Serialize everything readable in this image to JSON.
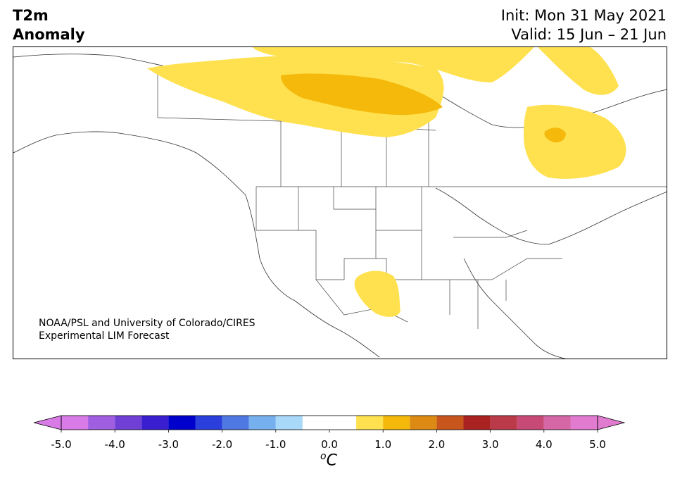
{
  "header": {
    "title_line1": "T2m",
    "title_line2": "Anomaly",
    "init": "Init: Mon 31 May 2021",
    "valid": "Valid: 15 Jun – 21 Jun"
  },
  "credit": {
    "line1": "NOAA/PSL and University of Colorado/CIRES",
    "line2": "Experimental LIM Forecast"
  },
  "colorbar": {
    "unit_base": "C",
    "unit_sup": "o",
    "tick_labels": [
      "-5.0",
      "-4.0",
      "-3.0",
      "-2.0",
      "-1.0",
      "0.0",
      "1.0",
      "2.0",
      "3.0",
      "4.0",
      "5.0"
    ],
    "levels": [
      -5.0,
      -4.5,
      -4.0,
      -3.5,
      -3.0,
      -2.5,
      -2.0,
      -1.5,
      -1.0,
      -0.5,
      0.5,
      1.0,
      1.5,
      2.0,
      2.5,
      3.0,
      3.5,
      4.0,
      4.5,
      5.0
    ],
    "colors": [
      "#d97be6",
      "#a05ee0",
      "#6f3fd6",
      "#3a1fd0",
      "#0000cc",
      "#2a3fdc",
      "#4f78e3",
      "#76b0ef",
      "#a9d9f8",
      "#ffffff",
      "#ffe14f",
      "#f4b90a",
      "#dd8a14",
      "#c8561c",
      "#aa2222",
      "#bb3a4a",
      "#c74a76",
      "#d567a6",
      "#e07bd0"
    ],
    "under_color": "#d97be6",
    "over_color": "#e07bd0"
  }
}
